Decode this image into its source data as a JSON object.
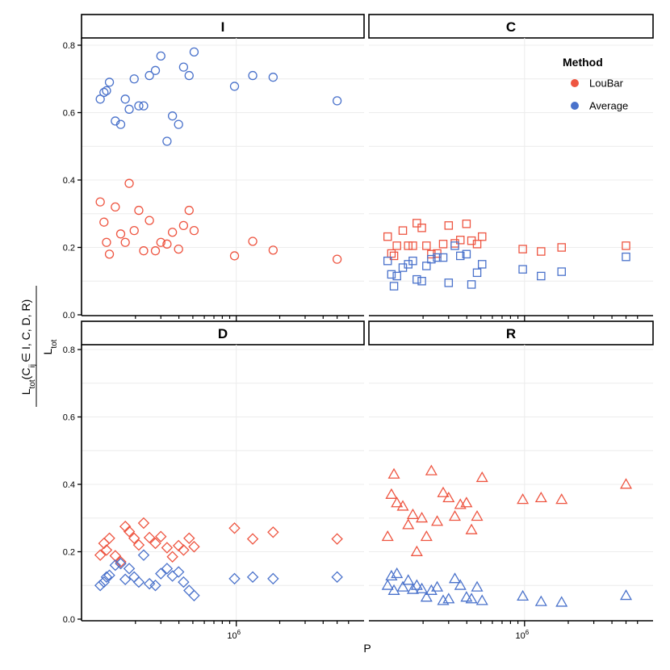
{
  "chart_data": {
    "type": "scatter",
    "facets": [
      "I",
      "C",
      "D",
      "R"
    ],
    "facet_shapes": {
      "I": "circle",
      "C": "square",
      "D": "diamond",
      "R": "triangle"
    },
    "x_scale": "log10",
    "xlim": [
      100000,
      6500000
    ],
    "ylim": [
      0,
      0.82
    ],
    "y_ticks": [
      0.0,
      0.2,
      0.4,
      0.6,
      0.8
    ],
    "y_tick_labels": [
      "0.0",
      "0.2",
      "0.4",
      "0.6",
      "0.8"
    ],
    "x_ticks": [
      1000000
    ],
    "x_tick_labels": [
      "10",
      "6"
    ],
    "xlabel": "P",
    "ylabel_numerator": {
      "main": "L",
      "sub": "tot",
      "text": "(C",
      "sub2": "ij",
      "tail": "∈ I, C, D, R)"
    },
    "ylabel_denominator": {
      "main": "L",
      "sub": "tot"
    },
    "legend": {
      "title": "Method",
      "entries": [
        {
          "label": "LouBar",
          "color": "#EE5541"
        },
        {
          "label": "Average",
          "color": "#4A72CB"
        }
      ]
    },
    "x_values": [
      114000,
      121000,
      126000,
      132000,
      145000,
      158000,
      170000,
      181000,
      196000,
      211000,
      228000,
      250000,
      275000,
      300000,
      331000,
      361000,
      398000,
      431000,
      471000,
      510000,
      972000,
      1300000,
      1800000,
      5000000
    ],
    "series": {
      "I": {
        "LouBar": [
          0.335,
          0.275,
          0.215,
          0.18,
          0.32,
          0.24,
          0.215,
          0.39,
          0.25,
          0.31,
          0.19,
          0.28,
          0.19,
          0.215,
          0.21,
          0.245,
          0.195,
          0.265,
          0.31,
          0.25,
          0.175,
          0.218,
          0.192,
          0.165
        ],
        "Average": [
          0.64,
          0.66,
          0.665,
          0.69,
          0.575,
          0.565,
          0.64,
          0.61,
          0.7,
          0.62,
          0.62,
          0.71,
          0.725,
          0.768,
          0.515,
          0.59,
          0.565,
          0.735,
          0.71,
          0.78,
          0.678,
          0.71,
          0.705,
          0.635
        ]
      },
      "C": {
        "LouBar": [
          0.232,
          0.182,
          0.175,
          0.205,
          0.25,
          0.205,
          0.205,
          0.272,
          0.258,
          0.205,
          0.18,
          0.182,
          0.21,
          0.265,
          0.212,
          0.222,
          0.27,
          0.22,
          0.21,
          0.232,
          0.195,
          0.188,
          0.2,
          0.205
        ],
        "Average": [
          0.16,
          0.12,
          0.085,
          0.115,
          0.14,
          0.15,
          0.16,
          0.105,
          0.1,
          0.145,
          0.165,
          0.17,
          0.17,
          0.095,
          0.205,
          0.175,
          0.18,
          0.09,
          0.125,
          0.15,
          0.135,
          0.115,
          0.128,
          0.172
        ]
      },
      "D": {
        "LouBar": [
          0.19,
          0.225,
          0.205,
          0.24,
          0.188,
          0.17,
          0.275,
          0.26,
          0.24,
          0.22,
          0.285,
          0.242,
          0.225,
          0.245,
          0.212,
          0.185,
          0.218,
          0.205,
          0.24,
          0.215,
          0.27,
          0.238,
          0.258,
          0.238
        ],
        "Average": [
          0.1,
          0.11,
          0.125,
          0.13,
          0.16,
          0.165,
          0.118,
          0.15,
          0.125,
          0.11,
          0.19,
          0.105,
          0.1,
          0.135,
          0.15,
          0.128,
          0.14,
          0.11,
          0.085,
          0.07,
          0.12,
          0.125,
          0.12,
          0.125
        ]
      },
      "R": {
        "LouBar": [
          0.245,
          0.37,
          0.43,
          0.345,
          0.335,
          0.28,
          0.31,
          0.2,
          0.3,
          0.245,
          0.44,
          0.29,
          0.375,
          0.36,
          0.305,
          0.34,
          0.345,
          0.265,
          0.305,
          0.42,
          0.355,
          0.36,
          0.355,
          0.4
        ],
        "Average": [
          0.1,
          0.128,
          0.085,
          0.135,
          0.095,
          0.115,
          0.088,
          0.1,
          0.09,
          0.065,
          0.085,
          0.095,
          0.055,
          0.06,
          0.12,
          0.1,
          0.065,
          0.06,
          0.095,
          0.055,
          0.068,
          0.052,
          0.05,
          0.07
        ]
      }
    }
  }
}
